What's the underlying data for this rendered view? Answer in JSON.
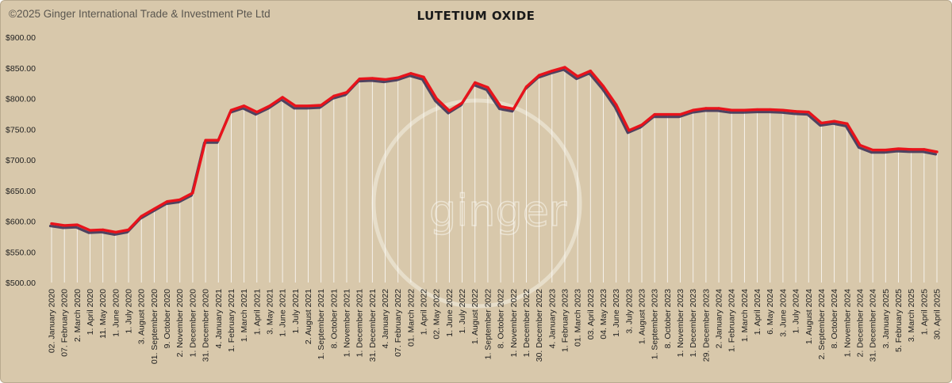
{
  "copyright": "©2025 Ginger International Trade & Investment Pte Ltd",
  "watermark": "ginger",
  "chart_data": {
    "type": "line",
    "title": "LUTETIUM OXIDE",
    "xlabel": "",
    "ylabel": "",
    "ylim": [
      500,
      900
    ],
    "yticks": [
      500,
      550,
      600,
      650,
      700,
      750,
      800,
      850,
      900
    ],
    "ytick_labels": [
      "$500.00",
      "$550.00",
      "$600.00",
      "$650.00",
      "$700.00",
      "$750.00",
      "$800.00",
      "$850.00",
      "$900.00"
    ],
    "grid": false,
    "legend": "none",
    "colors": {
      "line": "#e8131b",
      "shadow": "#3f3358",
      "drop_lines": "#ffffff",
      "background": "#d8c8ab"
    },
    "labels": [
      "02. January 2020",
      "07. February 2020",
      "2. March 2020",
      "1. April 2020",
      "11. May 2020",
      "1. June 2020",
      "1. July 2020",
      "3. August 2020",
      "01. September 2020",
      "9. October 2020",
      "2. November 2020",
      "1. December 2020",
      "31. December 2020",
      "4. January 2021",
      "1. February 2021",
      "1. March 2021",
      "1. April 2021",
      "3. May 2021",
      "1. June 2021",
      "1. July 2021",
      "2. August 2021",
      "1. September 2021",
      "8. October 2021",
      "1. November 2021",
      "1. December 2021",
      "31. December 2021",
      "4. January 2022",
      "07. February 2022",
      "01. March 2022",
      "1. April 2022",
      "02. May 2022",
      "1. June 2022",
      "1. July 2022",
      "1. August 2022",
      "1. September 2022",
      "8. October 2022",
      "1. November 2022",
      "1. December 2022",
      "30. December 2022",
      "4. January 2023",
      "1. February 2023",
      "01. March 2023",
      "03. April 2023",
      "04. May 2023",
      "1. June 2023",
      "3. July 2023",
      "1. August 2023",
      "1. September 2023",
      "8. October 2023",
      "1. November 2023",
      "1. December 2023",
      "29. December 2023",
      "2. January 2024",
      "1. February 2024",
      "1. March 2024",
      "1. April 2024",
      "6. May 2024",
      "3. June 2024",
      "1. July 2024",
      "1. August 2024",
      "2. September 2024",
      "8. October 2024",
      "1. November 2024",
      "2. December 2024",
      "31. December 2024",
      "3. January 2025",
      "5. February 2025",
      "3. March 2025",
      "1. April 2025",
      "30. April 2025"
    ],
    "series": [
      {
        "values": [
          596,
          593,
          594,
          585,
          586,
          582,
          586,
          608,
          620,
          632,
          635,
          646,
          732,
          732,
          781,
          788,
          778,
          788,
          802,
          788,
          788,
          789,
          804,
          810,
          832,
          833,
          831,
          834,
          841,
          835,
          800,
          780,
          793,
          826,
          818,
          787,
          783,
          819,
          838,
          845,
          851,
          836,
          845,
          820,
          790,
          748,
          757,
          774,
          774,
          774,
          781,
          784,
          784,
          781,
          781,
          782,
          782,
          781,
          779,
          778,
          760,
          763,
          759,
          724,
          716,
          716,
          718,
          717,
          717,
          713
        ]
      }
    ]
  }
}
